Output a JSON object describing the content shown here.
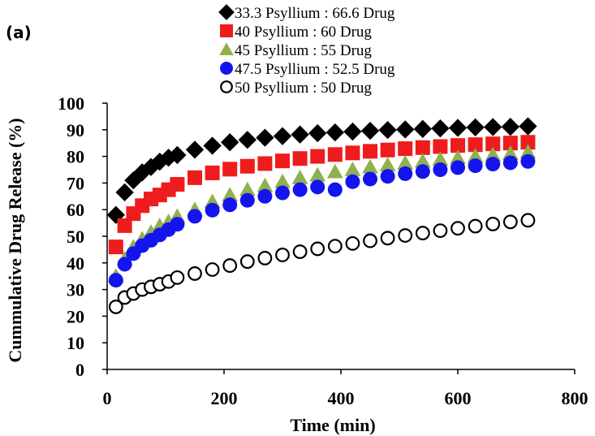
{
  "chart_data": {
    "type": "scatter",
    "panel_label": "(a)",
    "xlabel": "Time (min)",
    "ylabel": "Cummulative Drug Release (%)",
    "xlim": [
      0,
      800
    ],
    "ylim": [
      0,
      100
    ],
    "xticks": [
      0,
      200,
      400,
      600,
      800
    ],
    "yticks": [
      0,
      10,
      20,
      30,
      40,
      50,
      60,
      70,
      80,
      90,
      100
    ],
    "grid": false,
    "legend_position": "top",
    "x": [
      15,
      30,
      45,
      60,
      75,
      90,
      105,
      120,
      150,
      180,
      210,
      240,
      270,
      300,
      330,
      360,
      390,
      420,
      450,
      480,
      510,
      540,
      570,
      600,
      630,
      660,
      690,
      720
    ],
    "series": [
      {
        "name": "33.3 Psyllium : 66.6 Drug",
        "marker": "diamond",
        "color": "#000000",
        "filled": true,
        "values": [
          58,
          66.5,
          71,
          74,
          76,
          78,
          79.5,
          80.5,
          82.5,
          84,
          85.3,
          86.2,
          87,
          87.6,
          88.2,
          88.7,
          89,
          89.3,
          89.6,
          89.9,
          90.1,
          90.3,
          90.5,
          90.7,
          90.9,
          91,
          91.1,
          91.3
        ]
      },
      {
        "name": "40 Psyllium : 60 Drug",
        "marker": "square",
        "color": "#ee1c1c",
        "filled": true,
        "values": [
          46,
          54,
          58.5,
          61.5,
          64,
          65.5,
          67.5,
          69.5,
          72,
          73.8,
          75.2,
          76.3,
          77.3,
          78.3,
          79.2,
          80,
          80.7,
          81.3,
          81.9,
          82.4,
          82.9,
          83.3,
          83.7,
          84.1,
          84.4,
          84.7,
          85,
          85.3
        ]
      },
      {
        "name": "45 Psyllium : 55 Drug",
        "marker": "triangle",
        "color": "#8fb04e",
        "filled": true,
        "values": [
          35,
          41.5,
          46,
          49,
          51.5,
          54,
          55.5,
          57.5,
          60,
          63,
          65.5,
          67.5,
          69,
          70.5,
          72,
          73,
          74.2,
          75,
          76,
          76.8,
          77.5,
          78.2,
          78.9,
          79.5,
          80.1,
          80.6,
          81.1,
          81.6
        ]
      },
      {
        "name": "47.5 Psyllium : 52.5 Drug",
        "marker": "circle",
        "color": "#1414ee",
        "filled": true,
        "values": [
          33.5,
          39.5,
          43.5,
          46.5,
          48.5,
          50.5,
          52.5,
          54.5,
          57.5,
          59.8,
          61.8,
          63.5,
          65,
          66.3,
          67.5,
          68.5,
          67.5,
          70.5,
          71.5,
          72.5,
          73.5,
          74.3,
          75,
          75.8,
          76.5,
          77.1,
          77.6,
          78.1
        ]
      },
      {
        "name": "50 Psyllium : 50 Drug",
        "marker": "circle",
        "color": "#000000",
        "filled": false,
        "values": [
          23.5,
          27,
          28.5,
          30,
          31,
          32,
          33,
          34.5,
          36,
          37.5,
          39,
          40.5,
          41.8,
          43,
          44.2,
          45.3,
          46.3,
          47.3,
          48.3,
          49.3,
          50.3,
          51.2,
          52.1,
          53,
          53.8,
          54.6,
          55.4,
          56
        ]
      }
    ]
  }
}
